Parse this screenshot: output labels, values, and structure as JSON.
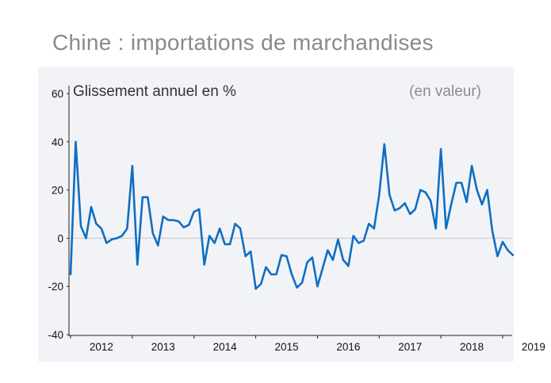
{
  "page_title": "Chine : importations de marchandises",
  "colors": {
    "panel_bg": "#f2f3f7",
    "line": "#0f6ec2",
    "zero_line": "#c6c6c6",
    "title": "#8a8a8a"
  },
  "chart_data": {
    "type": "line",
    "subtitle": "Glissement annuel en %",
    "unit_note": "(en valeur)",
    "ylim": [
      -40,
      60
    ],
    "y_ticks": [
      60,
      40,
      20,
      0,
      -20,
      -40
    ],
    "x_ticks": [
      "2012",
      "2013",
      "2014",
      "2015",
      "2016",
      "2017",
      "2018",
      "2019"
    ],
    "x_start": "2012-01",
    "grid": false,
    "zero_line": true,
    "series": [
      {
        "values": [
          -15,
          40,
          5,
          0,
          13,
          6,
          4,
          -2,
          -0.5,
          0,
          1,
          4,
          30,
          -11,
          17,
          17,
          2,
          -3,
          9,
          7.5,
          7.5,
          7,
          4.5,
          5.5,
          11,
          12,
          -11,
          1,
          -2,
          4,
          -2.5,
          -2.5,
          6,
          4,
          -7.5,
          -5.5,
          -21,
          -19,
          -12,
          -15,
          -15,
          -7,
          -7.5,
          -15,
          -20.5,
          -18.5,
          -10,
          -8,
          -20,
          -12.5,
          -5,
          -9,
          -0.5,
          -9,
          -11.5,
          1,
          -2,
          -1,
          6,
          4,
          18,
          39,
          18,
          11.5,
          12.5,
          14.5,
          10,
          12,
          20,
          19,
          15.5,
          4,
          37,
          4,
          14,
          23,
          23,
          15,
          30,
          20,
          14,
          20,
          3,
          -7.5,
          -1.5,
          -5,
          -7
        ]
      }
    ]
  }
}
